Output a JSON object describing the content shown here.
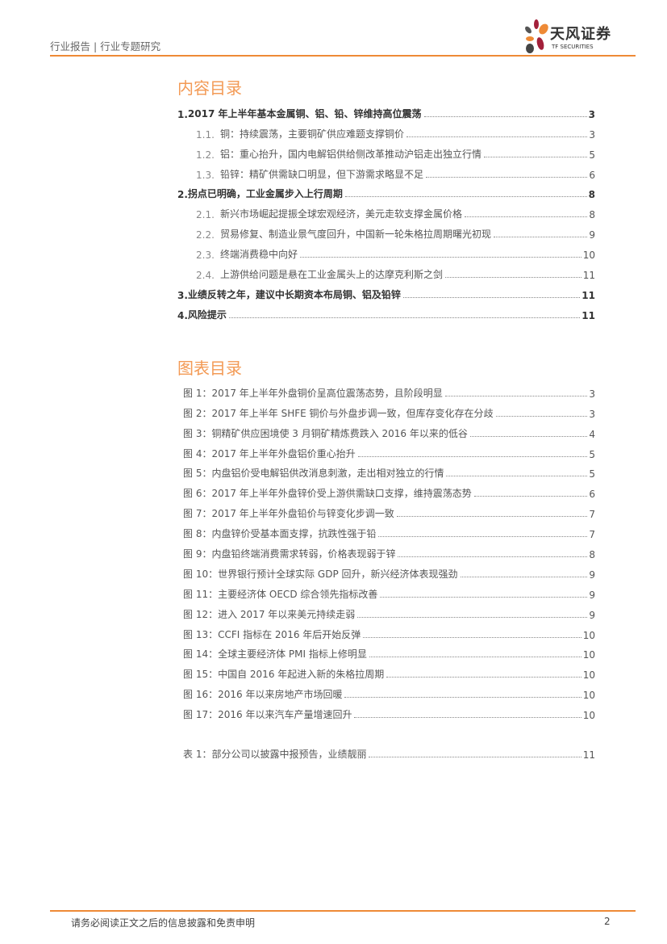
{
  "header": {
    "title": "行业报告 | 行业专题研究",
    "logo_cn": "天风证券",
    "logo_en": "TF SECURITIES"
  },
  "contents": {
    "title": "内容目录",
    "items": [
      {
        "level": 1,
        "num": "1.",
        "text": "2017 年上半年基本金属铜、铝、铅、锌维持高位震荡",
        "page": "3"
      },
      {
        "level": 2,
        "num": "1.1.",
        "text": "铜：持续震荡，主要铜矿供应难题支撑铜价",
        "page": "3"
      },
      {
        "level": 2,
        "num": "1.2.",
        "text": "铝：重心抬升，国内电解铝供给侧改革推动沪铝走出独立行情",
        "page": "5"
      },
      {
        "level": 2,
        "num": "1.3.",
        "text": "铅锌：精矿供需缺口明显，但下游需求略显不足",
        "page": "6"
      },
      {
        "level": 1,
        "num": "2.",
        "text": "拐点已明确，工业金属步入上行周期",
        "page": "8"
      },
      {
        "level": 2,
        "num": "2.1.",
        "text": "新兴市场崛起提振全球宏观经济，美元走软支撑金属价格",
        "page": "8"
      },
      {
        "level": 2,
        "num": "2.2.",
        "text": "贸易修复、制造业景气度回升，中国新一轮朱格拉周期曙光初现",
        "page": "9"
      },
      {
        "level": 2,
        "num": "2.3.",
        "text": "终端消费稳中向好",
        "page": "10"
      },
      {
        "level": 2,
        "num": "2.4.",
        "text": "上游供给问题是悬在工业金属头上的达摩克利斯之剑",
        "page": "11"
      },
      {
        "level": 1,
        "num": "3.",
        "text": "业绩反转之年，建议中长期资本布局铜、铝及铅锌",
        "page": "11"
      },
      {
        "level": 1,
        "num": "4.",
        "text": "风险提示",
        "page": "11"
      }
    ]
  },
  "figures": {
    "title": "图表目录",
    "items": [
      {
        "label": "图 1：",
        "text": "2017 年上半年外盘铜价呈高位震荡态势，且阶段明显",
        "page": "3"
      },
      {
        "label": "图 2：",
        "text": "2017 年上半年 SHFE 铜价与外盘步调一致，但库存变化存在分歧",
        "page": "3"
      },
      {
        "label": "图 3：",
        "text": "铜精矿供应困境使 3 月铜矿精炼费跌入 2016 年以来的低谷",
        "page": "4"
      },
      {
        "label": "图 4：",
        "text": "2017 年上半年外盘铝价重心抬升",
        "page": "5"
      },
      {
        "label": "图 5：",
        "text": "内盘铝价受电解铝供改消息刺激，走出相对独立的行情",
        "page": "5"
      },
      {
        "label": "图 6：",
        "text": "2017 年上半年外盘锌价受上游供需缺口支撑，维持震荡态势",
        "page": "6"
      },
      {
        "label": "图 7：",
        "text": "2017 年上半年外盘铅价与锌变化步调一致",
        "page": "7"
      },
      {
        "label": "图 8：",
        "text": "内盘锌价受基本面支撑，抗跌性强于铅",
        "page": "7"
      },
      {
        "label": "图 9：",
        "text": "内盘铅终端消费需求转弱，价格表现弱于锌",
        "page": "8"
      },
      {
        "label": "图 10：",
        "text": "世界银行预计全球实际 GDP 回升，新兴经济体表现强劲",
        "page": "9"
      },
      {
        "label": "图 11：",
        "text": "主要经济体 OECD 综合领先指标改善",
        "page": "9"
      },
      {
        "label": "图 12：",
        "text": "进入 2017 年以来美元持续走弱",
        "page": "9"
      },
      {
        "label": "图 13：",
        "text": "CCFI 指标在 2016 年后开始反弹",
        "page": "10"
      },
      {
        "label": "图 14：",
        "text": "全球主要经济体 PMI 指标上修明显",
        "page": "10"
      },
      {
        "label": "图 15：",
        "text": "中国自 2016 年起进入新的朱格拉周期",
        "page": "10"
      },
      {
        "label": "图 16：",
        "text": "2016 年以来房地产市场回暖",
        "page": "10"
      },
      {
        "label": "图 17：",
        "text": "2016 年以来汽车产量增速回升",
        "page": "10"
      }
    ],
    "tables": [
      {
        "label": "表 1：",
        "text": "部分公司以披露中报预告，业绩靓丽",
        "page": "11"
      }
    ]
  },
  "footer": {
    "disclaimer": "请务必阅读正文之后的信息披露和免责申明",
    "page": "2"
  },
  "colors": {
    "accent": "#ee8a36",
    "title": "#f39a55",
    "logo_red": "#a3203a",
    "logo_gray": "#555555"
  }
}
